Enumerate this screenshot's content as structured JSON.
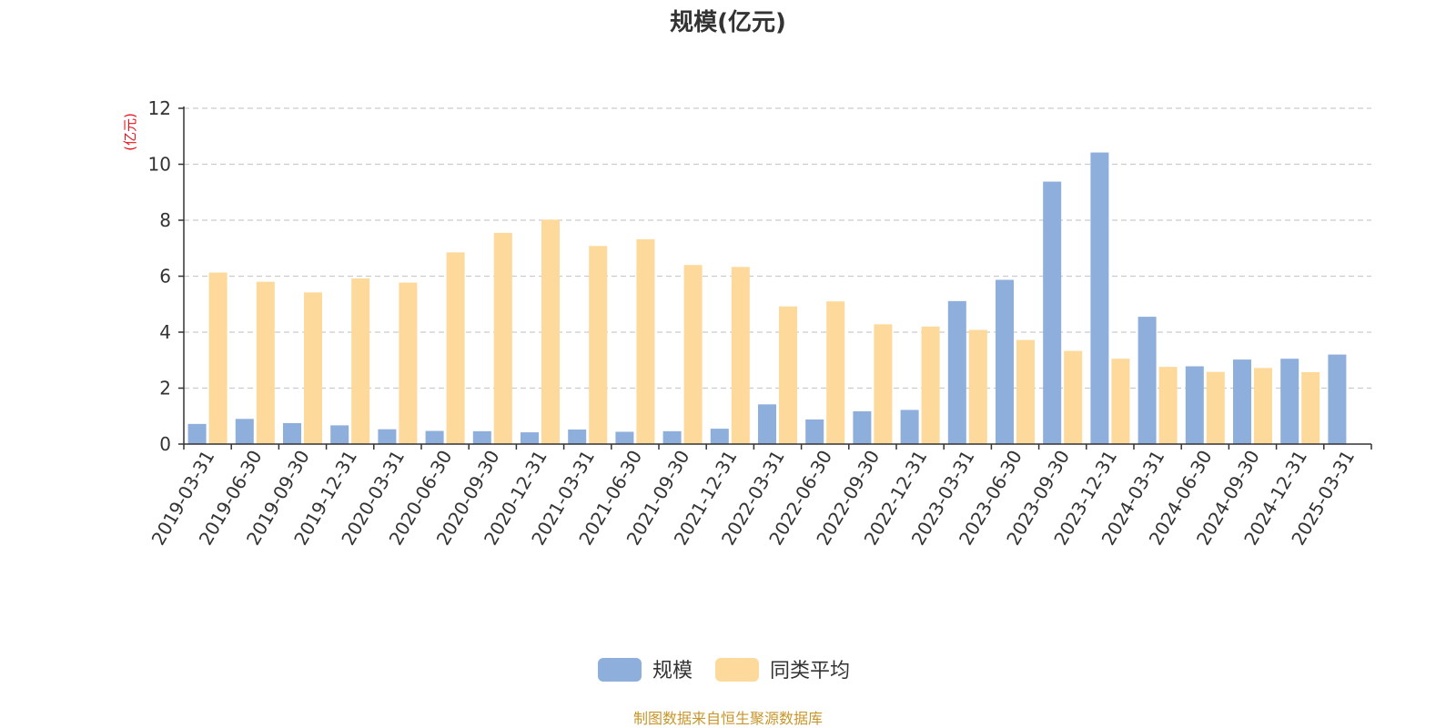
{
  "chart_data": {
    "type": "bar",
    "title": "规模(亿元)",
    "ylabel": "(亿元)",
    "xlabel": "",
    "ylim": [
      0,
      12
    ],
    "yticks": [
      0,
      2,
      4,
      6,
      8,
      10,
      12
    ],
    "grid": true,
    "legend_position": "bottom-center",
    "categories": [
      "2019-03-31",
      "2019-06-30",
      "2019-09-30",
      "2019-12-31",
      "2020-03-31",
      "2020-06-30",
      "2020-09-30",
      "2020-12-31",
      "2021-03-31",
      "2021-06-30",
      "2021-09-30",
      "2021-12-31",
      "2022-03-31",
      "2022-06-30",
      "2022-09-30",
      "2022-12-31",
      "2023-03-31",
      "2023-06-30",
      "2023-09-30",
      "2023-12-31",
      "2024-03-31",
      "2024-06-30",
      "2024-09-30",
      "2024-12-31",
      "2025-03-31"
    ],
    "series": [
      {
        "name": "规模",
        "color": "#8eaedb",
        "values": [
          0.72,
          0.9,
          0.75,
          0.67,
          0.53,
          0.47,
          0.46,
          0.42,
          0.52,
          0.44,
          0.46,
          0.55,
          1.42,
          0.88,
          1.17,
          1.22,
          5.11,
          5.87,
          9.38,
          10.42,
          4.55,
          2.78,
          3.02,
          3.05,
          3.2
        ]
      },
      {
        "name": "同类平均",
        "color": "#fdd99b",
        "values": [
          6.13,
          5.8,
          5.42,
          5.92,
          5.77,
          6.85,
          7.55,
          8.02,
          7.08,
          7.32,
          6.4,
          6.33,
          4.92,
          5.1,
          4.28,
          4.2,
          4.08,
          3.72,
          3.33,
          3.05,
          2.76,
          2.58,
          2.72,
          2.57,
          null
        ]
      }
    ]
  },
  "source_text": "制图数据来自恒生聚源数据库",
  "colors": {
    "axis": "#333333",
    "grid": "#cccccc",
    "unit": "#e8141b",
    "source": "#c8962a"
  }
}
